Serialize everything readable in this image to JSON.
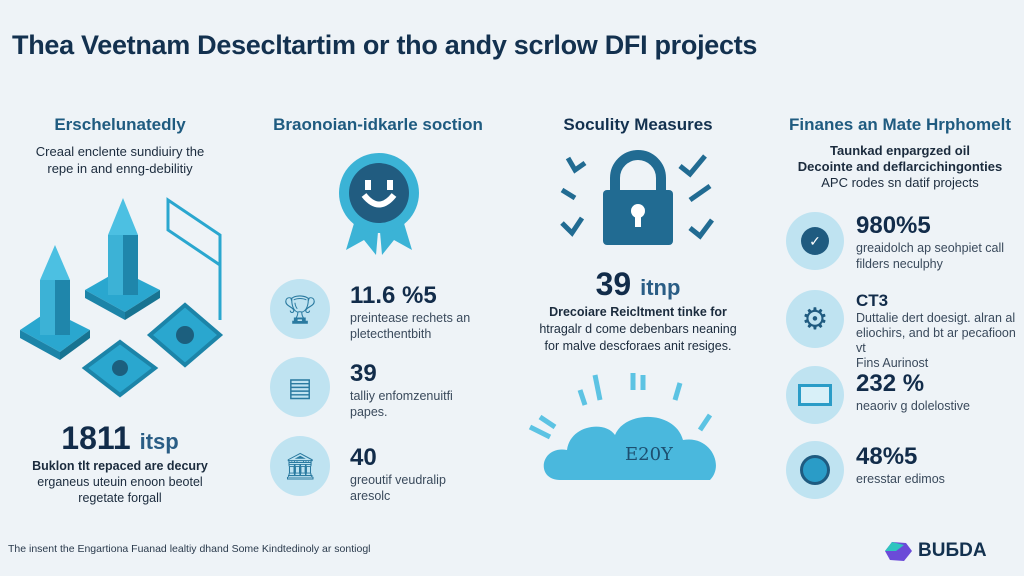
{
  "title": "Thea Veetnam Desecltartim or tho andy scrlow DFI projects",
  "columns": [
    {
      "header": "Erschelunatedly",
      "desc": [
        "Creaal enclente sundiuiry the",
        "repe in and enng-debilitiy"
      ],
      "value": "1811",
      "unit": "itsp",
      "value_desc": [
        "Buklon tlt repaced are decury",
        "erganeus uteuin enoon beotel",
        "regetate forgall"
      ]
    },
    {
      "header": "Braonoian-idkarle soction",
      "items": [
        {
          "icon": "trophy-icon",
          "value": "11.6 %5",
          "desc": [
            "preintease rechets an",
            "pletecthentbith"
          ]
        },
        {
          "icon": "document-icon",
          "value": "39",
          "desc": [
            "talliy enfomzenuitfi",
            "papes."
          ]
        },
        {
          "icon": "building-icon",
          "value": "40",
          "desc": [
            "greoutif veudralip",
            "aresolc"
          ]
        }
      ]
    },
    {
      "header": "Soculity Measures",
      "value": "39",
      "unit": "itnp",
      "desc": [
        "Drecoiare Reicltment tinke for",
        "htragalr d come debenbars neaning",
        "for malve descforaes anit resiges."
      ],
      "cloud_label": "E20Y"
    },
    {
      "header": "Finanes an Mate Hrphomelt",
      "desc": [
        "Taunkad enpargzed oil",
        "Decointe and deflarcichingonties",
        "APC rodes sn datif projects"
      ],
      "items": [
        {
          "icon": "shield-check-icon",
          "value": "980%5",
          "desc": [
            "greaidolch ap seohpiet call",
            "filders neculphy"
          ]
        },
        {
          "icon": "gear-icon",
          "value": "CT3",
          "desc": [
            "Duttalie dert doesigt. alran al",
            "eliochirs, and bt ar pecafioon vt",
            "Fins Aurinost"
          ]
        },
        {
          "icon": "chart-screen-icon",
          "value": "232 %",
          "desc": [
            "neaoriv g dolelostive"
          ]
        },
        {
          "icon": "globe-icon",
          "value": "48%5",
          "desc": [
            "eresstar edimos"
          ]
        }
      ]
    }
  ],
  "footer": "The insent the Engartiona Fuanad lealtiy dhand Some Kindtedinoly ar sontiogl",
  "logo": "BUБDA",
  "colors": {
    "accent": "#3bb3d6",
    "navy": "#13314f",
    "teal": "#1f5b80"
  }
}
